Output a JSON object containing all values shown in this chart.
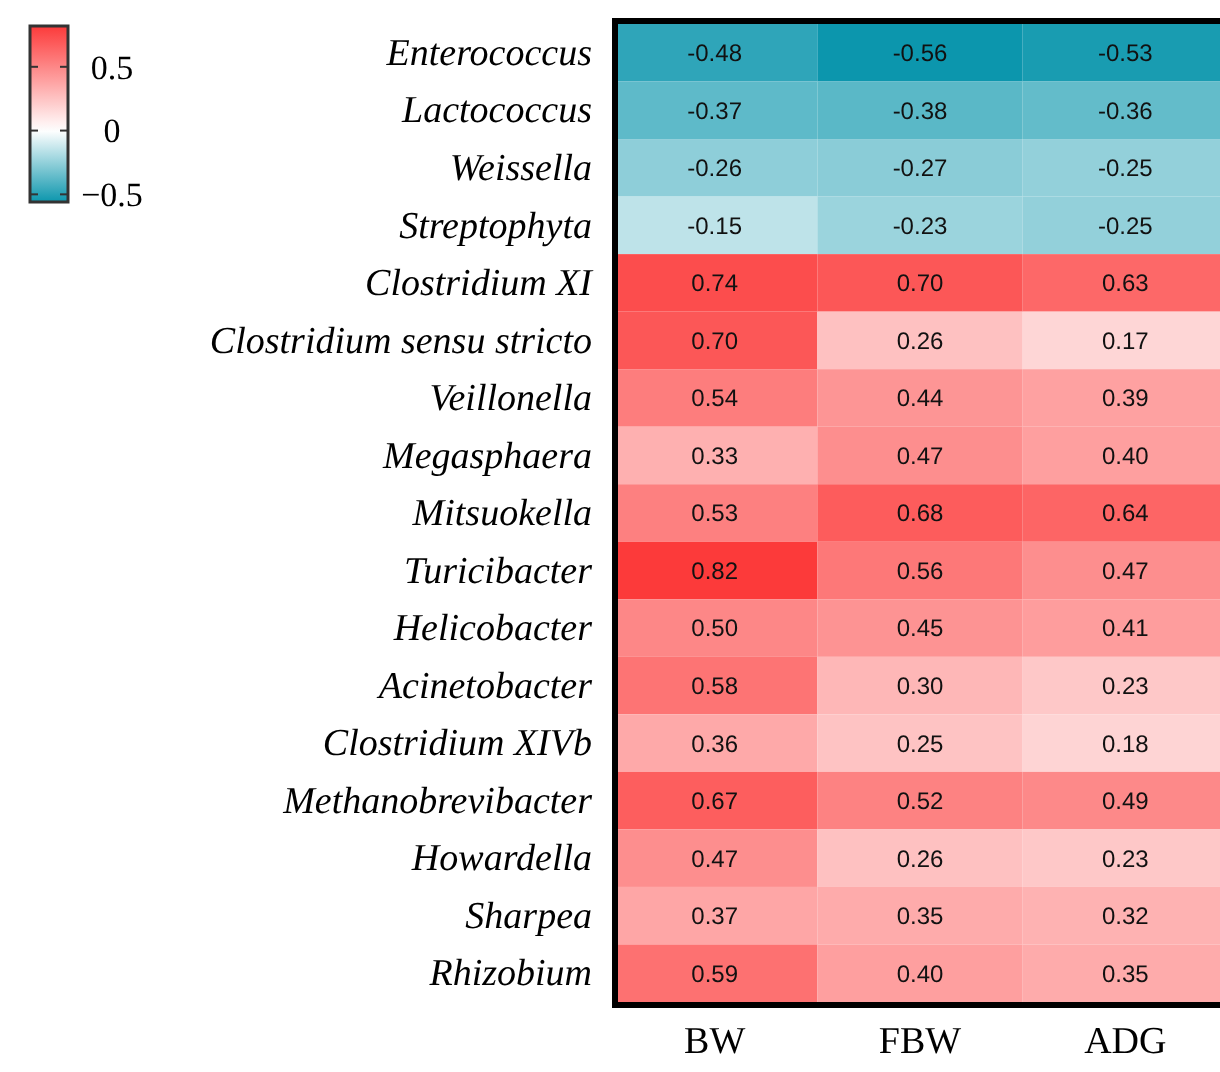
{
  "chart_data": {
    "type": "heatmap",
    "categories": [
      "BW",
      "FBW",
      "ADG"
    ],
    "y_categories": [
      "Enterococcus",
      "Lactococcus",
      "Weissella",
      "Streptophyta",
      "Clostridium XI",
      "Clostridium sensu stricto",
      "Veillonella",
      "Megasphaera",
      "Mitsuokella",
      "Turicibacter",
      "Helicobacter",
      "Acinetobacter",
      "Clostridium XIVb",
      "Methanobrevibacter",
      "Howardella",
      "Sharpea",
      "Rhizobium"
    ],
    "cells": [
      [
        -0.48,
        -0.56,
        -0.53
      ],
      [
        -0.37,
        -0.38,
        -0.36
      ],
      [
        -0.26,
        -0.27,
        -0.25
      ],
      [
        -0.15,
        -0.23,
        -0.25
      ],
      [
        0.74,
        0.7,
        0.63
      ],
      [
        0.7,
        0.26,
        0.17
      ],
      [
        0.54,
        0.44,
        0.39
      ],
      [
        0.33,
        0.47,
        0.4
      ],
      [
        0.53,
        0.68,
        0.64
      ],
      [
        0.82,
        0.56,
        0.47
      ],
      [
        0.5,
        0.45,
        0.41
      ],
      [
        0.58,
        0.3,
        0.23
      ],
      [
        0.36,
        0.25,
        0.18
      ],
      [
        0.67,
        0.52,
        0.49
      ],
      [
        0.47,
        0.26,
        0.23
      ],
      [
        0.37,
        0.35,
        0.32
      ],
      [
        0.59,
        0.4,
        0.35
      ]
    ],
    "clim": [
      -0.56,
      0.82
    ],
    "cticks": [
      -0.5,
      0,
      0.5
    ],
    "cell_labels": [
      [
        "-0.48",
        "-0.56",
        "-0.53"
      ],
      [
        "-0.37",
        "-0.38",
        "-0.36"
      ],
      [
        "-0.26",
        "-0.27",
        "-0.25"
      ],
      [
        "-0.15",
        "-0.23",
        "-0.25"
      ],
      [
        "0.74",
        "0.70",
        "0.63"
      ],
      [
        "0.70",
        "0.26",
        "0.17"
      ],
      [
        "0.54",
        "0.44",
        "0.39"
      ],
      [
        "0.33",
        "0.47",
        "0.40"
      ],
      [
        "0.53",
        "0.68",
        "0.64"
      ],
      [
        "0.82",
        "0.56",
        "0.47"
      ],
      [
        "0.50",
        "0.45",
        "0.41"
      ],
      [
        "0.58",
        "0.30",
        "0.23"
      ],
      [
        "0.36",
        "0.25",
        "0.18"
      ],
      [
        "0.67",
        "0.52",
        "0.49"
      ],
      [
        "0.47",
        "0.26",
        "0.23"
      ],
      [
        "0.37",
        "0.35",
        "0.32"
      ],
      [
        "0.59",
        "0.40",
        "0.35"
      ]
    ]
  }
}
